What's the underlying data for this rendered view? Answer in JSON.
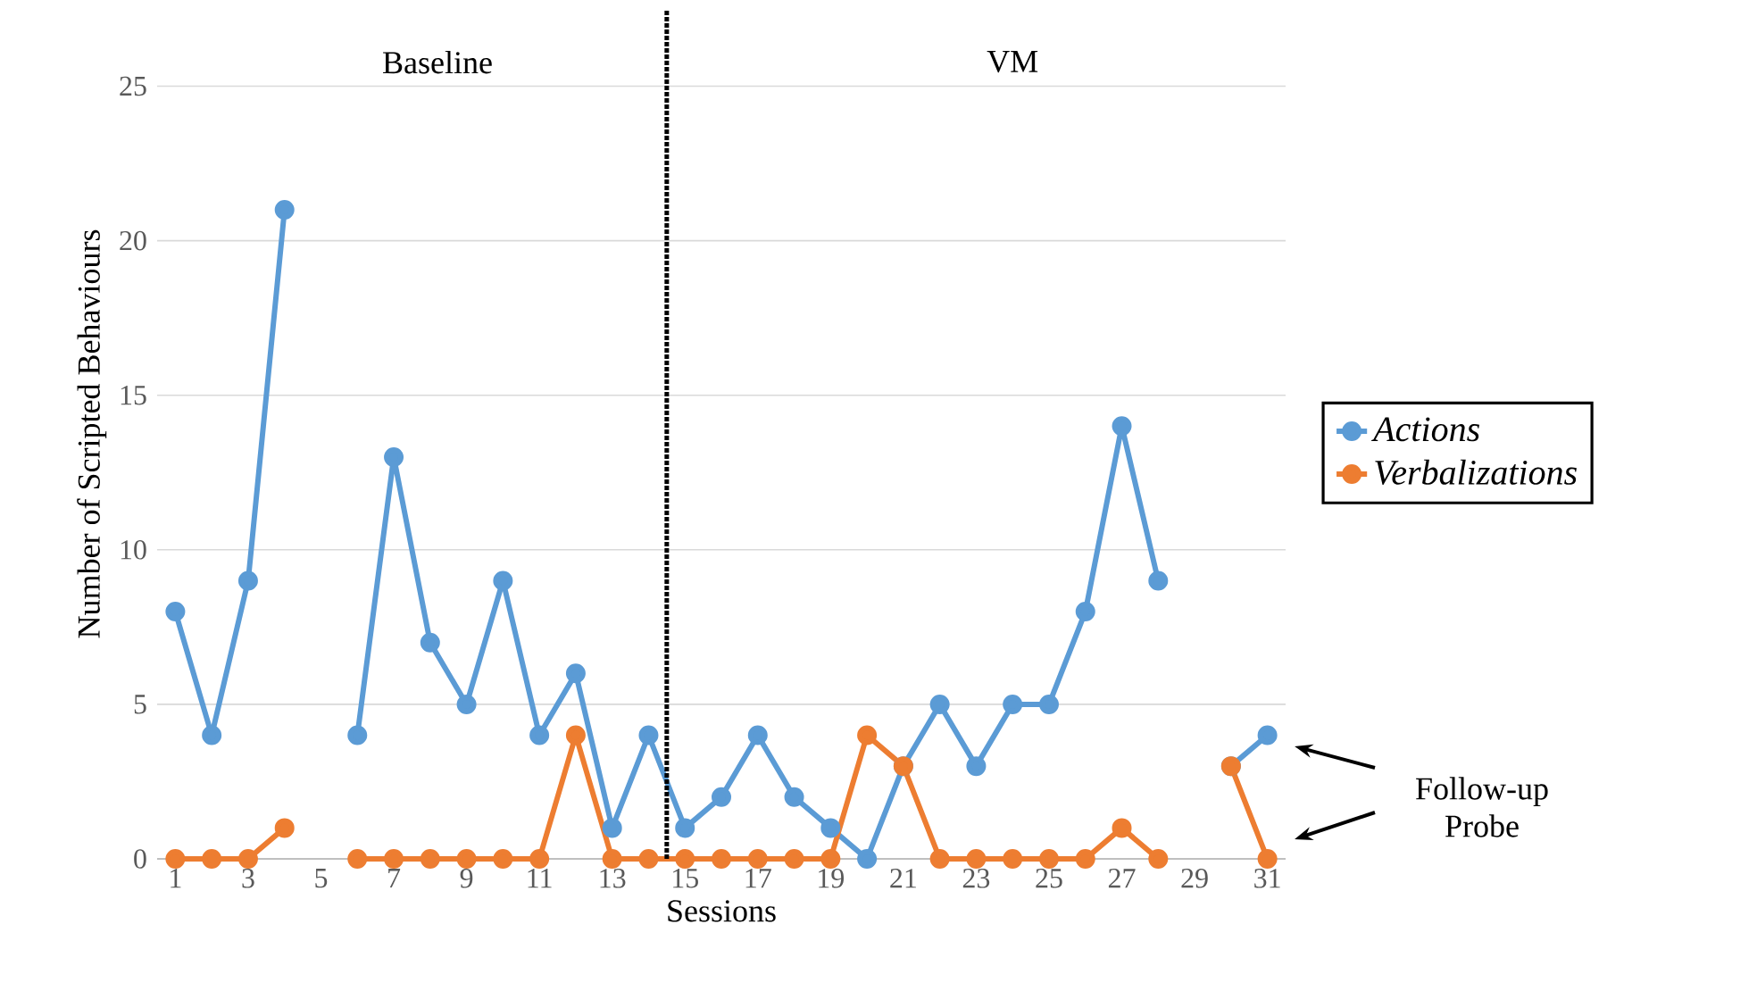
{
  "chart_data": {
    "type": "line",
    "xlabel": "Sessions",
    "ylabel": "Number of Scripted Behaviours",
    "x": [
      1,
      2,
      3,
      4,
      5,
      6,
      7,
      8,
      9,
      10,
      11,
      12,
      13,
      14,
      15,
      16,
      17,
      18,
      19,
      20,
      21,
      22,
      23,
      24,
      25,
      26,
      27,
      28,
      29,
      30,
      31
    ],
    "series": [
      {
        "name": "Actions",
        "color": "#5b9bd5",
        "values": [
          8,
          4,
          9,
          21,
          null,
          4,
          13,
          7,
          5,
          9,
          4,
          6,
          1,
          4,
          1,
          2,
          4,
          2,
          1,
          0,
          3,
          5,
          3,
          5,
          5,
          8,
          14,
          9,
          null,
          3,
          4
        ]
      },
      {
        "name": "Verbalizations",
        "color": "#ed7d31",
        "values": [
          0,
          0,
          0,
          1,
          null,
          0,
          0,
          0,
          0,
          0,
          0,
          4,
          0,
          0,
          0,
          0,
          0,
          0,
          0,
          4,
          3,
          0,
          0,
          0,
          0,
          0,
          1,
          0,
          null,
          3,
          0
        ]
      }
    ],
    "xlim": [
      0.5,
      31.5
    ],
    "xticks": [
      1,
      3,
      5,
      7,
      9,
      11,
      13,
      15,
      17,
      19,
      21,
      23,
      25,
      27,
      29,
      31
    ],
    "ylim": [
      0,
      27.5
    ],
    "yticks": [
      0,
      5,
      10,
      15,
      20,
      25
    ],
    "grid": "y",
    "legend": "right",
    "marker": "circle",
    "line_style": "solid",
    "ref_lines": [
      {
        "axis": "x",
        "value": 14.5,
        "color": "#000000",
        "line_style": "dotted"
      }
    ],
    "annotations": [
      "Baseline",
      "VM",
      "Follow-up Probe"
    ]
  }
}
